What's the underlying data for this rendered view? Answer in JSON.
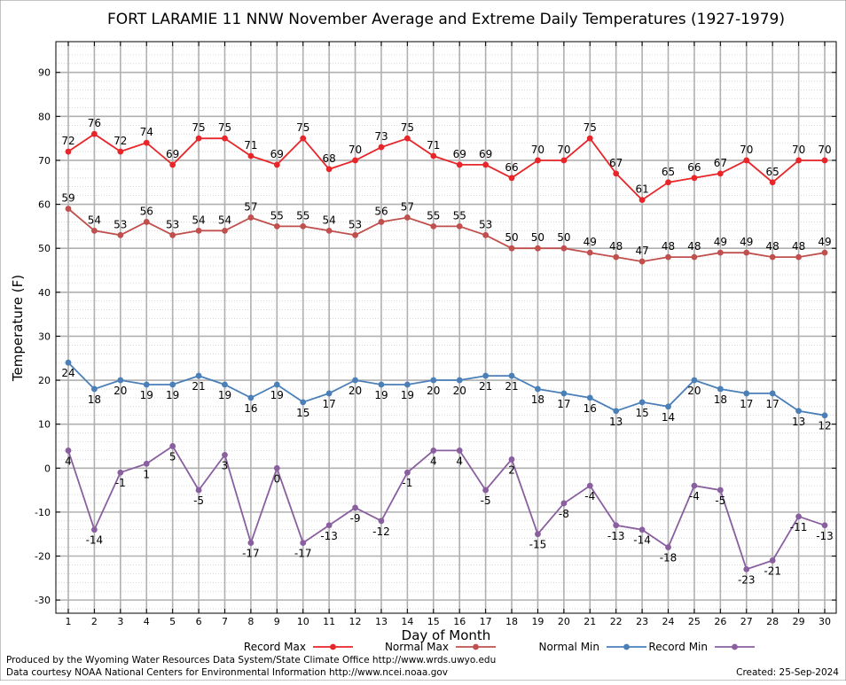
{
  "chart_data": {
    "type": "line",
    "title": "FORT LARAMIE 11 NNW November Average and Extreme Daily Temperatures (1927-1979)",
    "xlabel": "Day of Month",
    "ylabel": "Temperature (F)",
    "x": [
      1,
      2,
      3,
      4,
      5,
      6,
      7,
      8,
      9,
      10,
      11,
      12,
      13,
      14,
      15,
      16,
      17,
      18,
      19,
      20,
      21,
      22,
      23,
      24,
      25,
      26,
      27,
      28,
      29,
      30
    ],
    "x_tick_labels": [
      "1",
      "2",
      "3",
      "4",
      "5",
      "6",
      "7",
      "8",
      "9",
      "10",
      "11",
      "12",
      "13",
      "14",
      "15",
      "16",
      "17",
      "18",
      "19",
      "20",
      "21",
      "22",
      "23",
      "24",
      "25",
      "26",
      "27",
      "28",
      "29",
      "30"
    ],
    "ylim": [
      -33,
      97
    ],
    "y_ticks": [
      -30,
      -20,
      -10,
      0,
      10,
      20,
      30,
      40,
      50,
      60,
      70,
      80,
      90
    ],
    "y_tick_labels": [
      "-30",
      "-20",
      "-10",
      "0",
      "10",
      "20",
      "30",
      "40",
      "50",
      "60",
      "70",
      "80",
      "90"
    ],
    "grid": true,
    "legend_position": "bottom",
    "series": [
      {
        "name": "Record Max",
        "color": "#e8262a",
        "labels_above": true,
        "values": [
          72,
          76,
          72,
          74,
          69,
          75,
          75,
          71,
          69,
          75,
          68,
          70,
          73,
          75,
          71,
          69,
          69,
          66,
          70,
          70,
          75,
          67,
          61,
          65,
          66,
          67,
          70,
          65,
          70,
          70
        ]
      },
      {
        "name": "Normal Max",
        "color": "#c0504d",
        "labels_above": true,
        "values": [
          59,
          54,
          53,
          56,
          53,
          54,
          54,
          57,
          55,
          55,
          54,
          53,
          56,
          57,
          55,
          55,
          53,
          50,
          50,
          50,
          49,
          48,
          47,
          48,
          48,
          49,
          49,
          48,
          48,
          49
        ]
      },
      {
        "name": "Normal Min",
        "color": "#4a7fb8",
        "labels_above": false,
        "values": [
          24,
          18,
          20,
          19,
          19,
          21,
          19,
          16,
          19,
          15,
          17,
          20,
          19,
          19,
          20,
          20,
          21,
          21,
          18,
          17,
          16,
          13,
          15,
          14,
          20,
          18,
          17,
          17,
          13,
          12
        ]
      },
      {
        "name": "Record Min",
        "color": "#8a5fa0",
        "labels_above": false,
        "values": [
          4,
          -14,
          -1,
          1,
          5,
          -5,
          3,
          -17,
          0,
          -17,
          -13,
          -9,
          -12,
          -1,
          4,
          4,
          -5,
          2,
          -15,
          -8,
          -4,
          -13,
          -14,
          -18,
          -4,
          -5,
          -23,
          -21,
          -11,
          -13
        ]
      }
    ]
  },
  "footer": {
    "line1": "Produced by the Wyoming Water Resources Data System/State Climate Office http://www.wrds.uwyo.edu",
    "line2": "Data courtesy NOAA National Centers for Environmental Information http://www.ncei.noaa.gov",
    "created": "Created:  25-Sep-2024"
  }
}
